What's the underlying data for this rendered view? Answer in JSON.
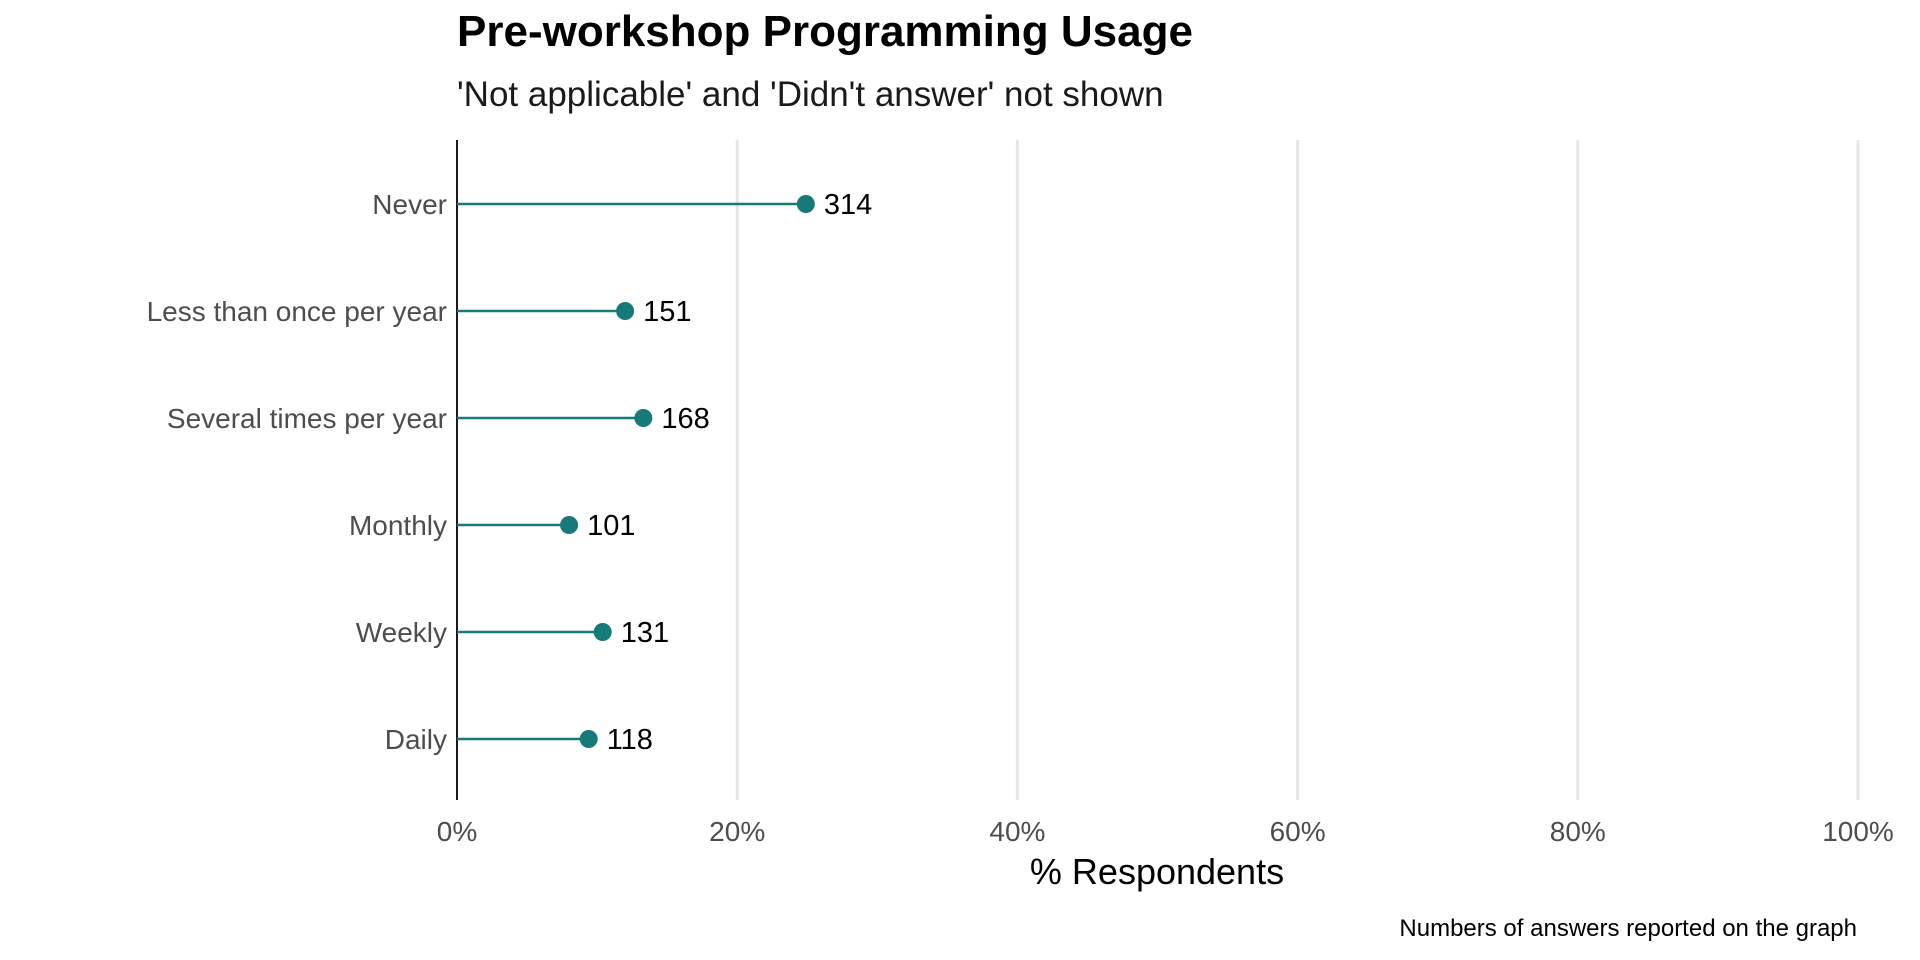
{
  "chart_data": {
    "type": "lollipop",
    "title": "Pre-workshop Programming Usage",
    "subtitle": "'Not applicable' and 'Didn't answer' not shown",
    "xlabel": "% Respondents",
    "caption": "Numbers of answers reported on the graph",
    "xlim": [
      0,
      100
    ],
    "x_ticks": [
      0,
      20,
      40,
      60,
      80,
      100
    ],
    "x_tick_labels": [
      "0%",
      "20%",
      "40%",
      "60%",
      "80%",
      "100%"
    ],
    "grid": "vertical major",
    "color": "#167a78",
    "categories": [
      "Never",
      "Less than once per year",
      "Several times per year",
      "Monthly",
      "Weekly",
      "Daily"
    ],
    "percent": [
      24.9,
      12.0,
      13.3,
      8.0,
      10.4,
      9.4
    ],
    "counts": [
      314,
      151,
      168,
      101,
      131,
      118
    ]
  }
}
